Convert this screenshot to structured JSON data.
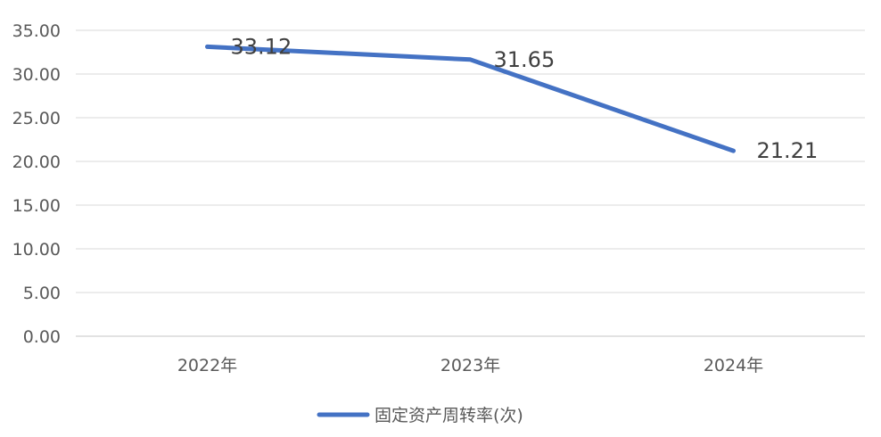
{
  "chart_data": {
    "type": "line",
    "categories": [
      "2022年",
      "2023年",
      "2024年"
    ],
    "series": [
      {
        "name": "固定资产周转率(次)",
        "values": [
          33.12,
          31.65,
          21.21
        ]
      }
    ],
    "data_labels": [
      "33.12",
      "31.65",
      "21.21"
    ],
    "y_ticks": [
      "0.00",
      "5.00",
      "10.00",
      "15.00",
      "20.00",
      "25.00",
      "30.00",
      "35.00"
    ],
    "ylim": [
      0,
      35
    ],
    "grid": true,
    "legend_position": "bottom",
    "colors": {
      "series": "#4472C4",
      "grid": "#D9D9D9"
    }
  }
}
